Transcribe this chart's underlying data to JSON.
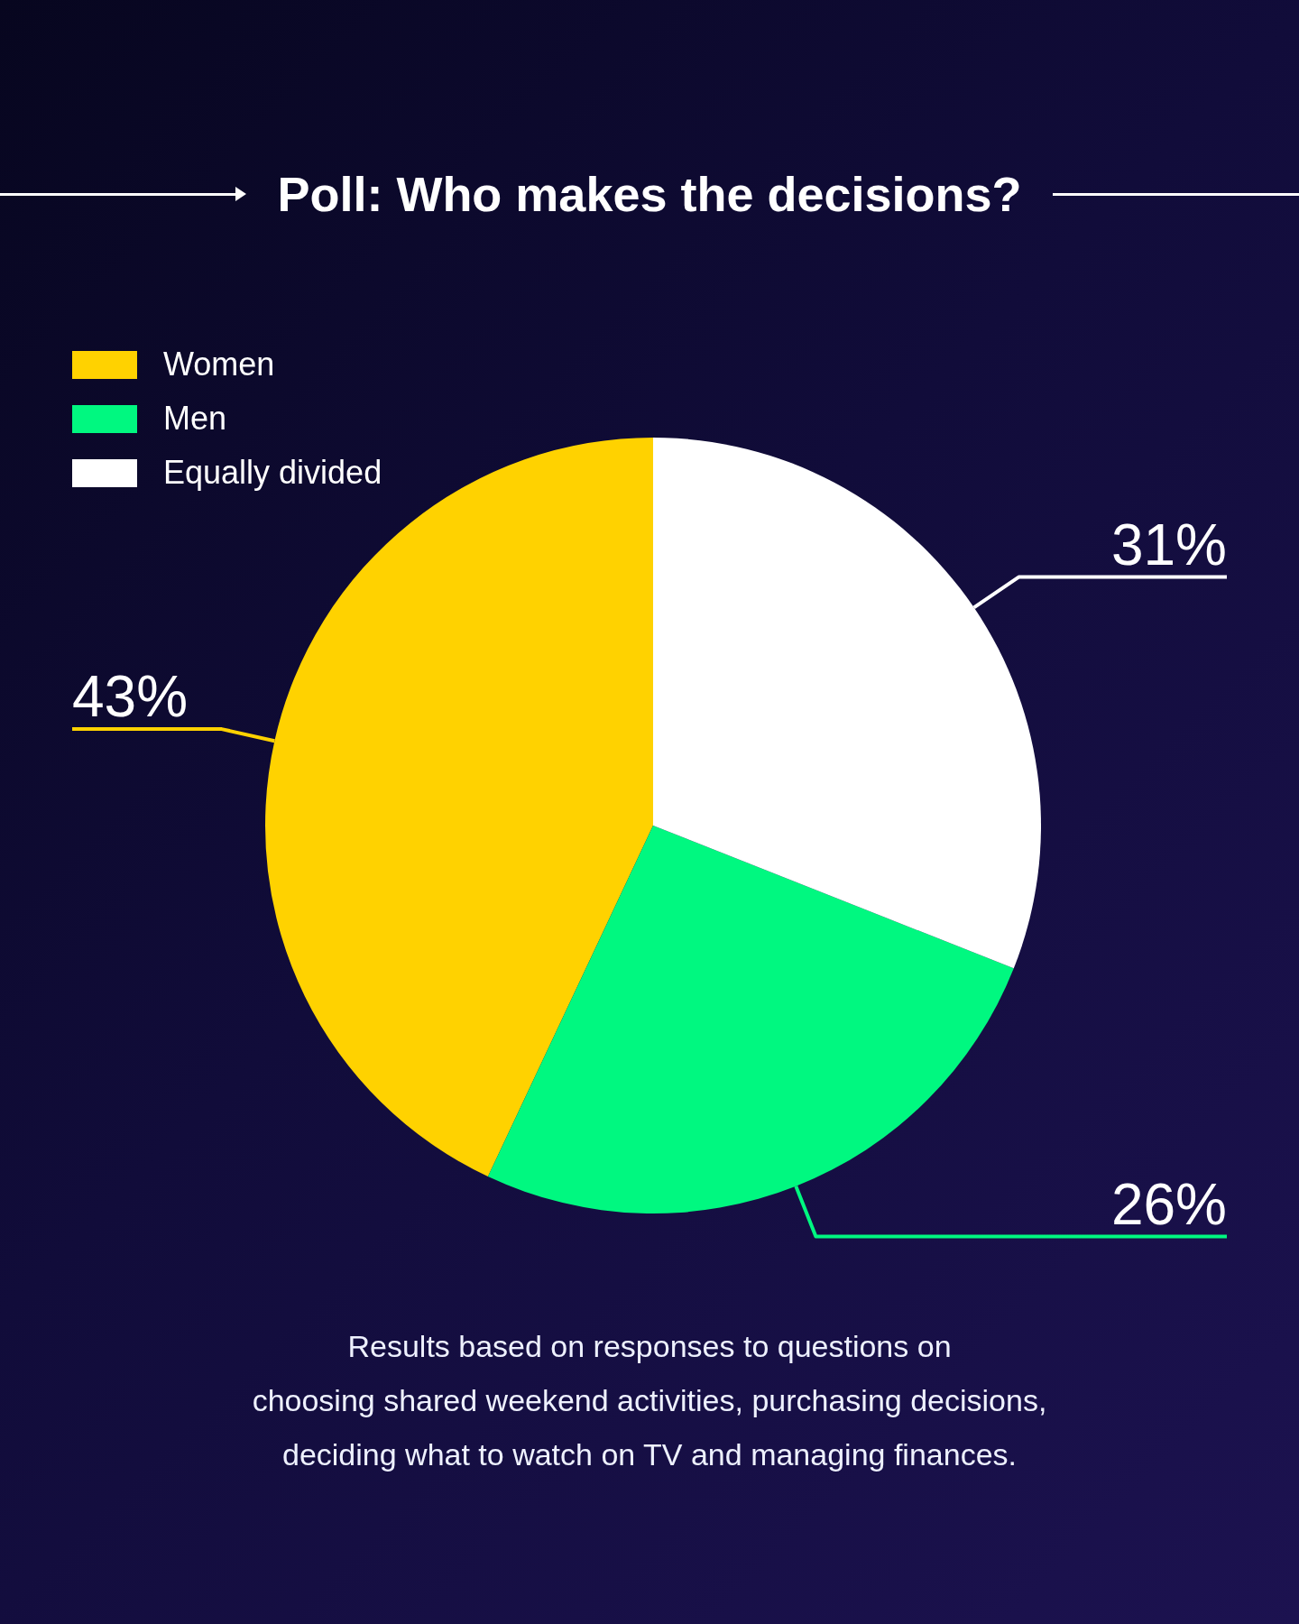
{
  "chart_data": {
    "type": "pie",
    "title": "Poll: Who makes the decisions?",
    "categories": [
      "Women",
      "Men",
      "Equally divided"
    ],
    "values": [
      43,
      26,
      31
    ],
    "colors": [
      "#ffd200",
      "#00f880",
      "#ffffff"
    ],
    "value_labels": [
      "43%",
      "26%",
      "31%"
    ],
    "legend": "top left",
    "annotations": [
      "Results based on responses to questions on\nchoosing shared weekend activities, purchasing decisions,\ndeciding what to watch on TV and managing finances."
    ]
  }
}
